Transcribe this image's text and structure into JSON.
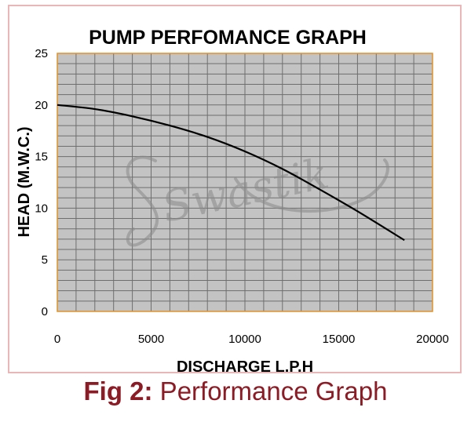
{
  "chart_data": {
    "type": "line",
    "title": "PUMP PERFOMANCE GRAPH",
    "xlabel": "DISCHARGE L.P.H",
    "ylabel": "HEAD (M.W.C.)",
    "xlim": [
      0,
      20000
    ],
    "ylim": [
      0,
      25
    ],
    "x_ticks": [
      0,
      5000,
      10000,
      15000,
      20000
    ],
    "y_ticks": [
      0,
      5,
      10,
      15,
      20,
      25
    ],
    "grid": true,
    "series": [
      {
        "x": [
          0,
          2000,
          4000,
          6000,
          8000,
          10000,
          12000,
          14000,
          16000,
          18500
        ],
        "y": [
          20.0,
          19.6,
          18.9,
          18.0,
          16.9,
          15.5,
          13.8,
          11.8,
          9.7,
          6.9
        ]
      }
    ]
  },
  "watermark": "Swastik",
  "caption": {
    "prefix": "Fig 2:",
    "text": " Performance Graph"
  },
  "colors": {
    "plot_bg": "#c3c3c3",
    "plot_border": "#e0922d",
    "grid": "#6e6e6e",
    "curve": "#000000",
    "caption": "#8b1b24",
    "frame": "#e9b7b7",
    "watermark": "#8a8a8a"
  }
}
